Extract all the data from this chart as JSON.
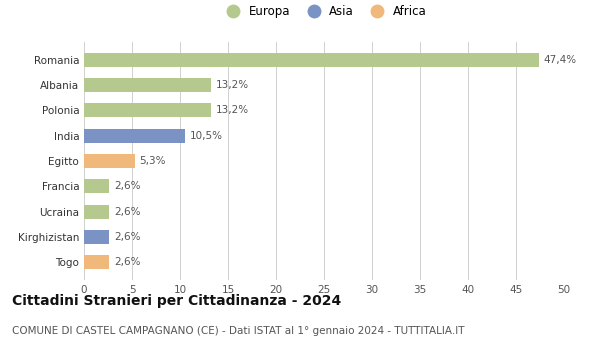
{
  "categories": [
    "Romania",
    "Albania",
    "Polonia",
    "India",
    "Egitto",
    "Francia",
    "Ucraina",
    "Kirghizistan",
    "Togo"
  ],
  "values": [
    47.4,
    13.2,
    13.2,
    10.5,
    5.3,
    2.6,
    2.6,
    2.6,
    2.6
  ],
  "labels": [
    "47,4%",
    "13,2%",
    "13,2%",
    "10,5%",
    "5,3%",
    "2,6%",
    "2,6%",
    "2,6%",
    "2,6%"
  ],
  "colors": [
    "#b5c98e",
    "#b5c98e",
    "#b5c98e",
    "#7b93c4",
    "#f0b87a",
    "#b5c98e",
    "#b5c98e",
    "#7b93c4",
    "#f0b87a"
  ],
  "legend_labels": [
    "Europa",
    "Asia",
    "Africa"
  ],
  "legend_colors": [
    "#b5c98e",
    "#7b93c4",
    "#f0b87a"
  ],
  "title": "Cittadini Stranieri per Cittadinanza - 2024",
  "subtitle": "COMUNE DI CASTEL CAMPAGNANO (CE) - Dati ISTAT al 1° gennaio 2024 - TUTTITALIA.IT",
  "xlim": [
    0,
    50
  ],
  "xticks": [
    0,
    5,
    10,
    15,
    20,
    25,
    30,
    35,
    40,
    45,
    50
  ],
  "background_color": "#ffffff",
  "grid_color": "#d0d0d0",
  "bar_height": 0.55,
  "title_fontsize": 10,
  "subtitle_fontsize": 7.5,
  "label_fontsize": 7.5,
  "tick_fontsize": 7.5,
  "legend_fontsize": 8.5
}
